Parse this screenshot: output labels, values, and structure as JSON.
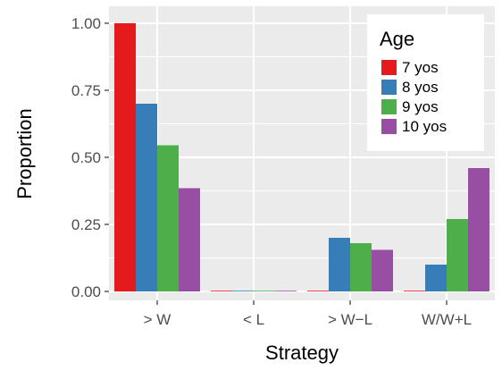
{
  "chart_data": {
    "type": "bar",
    "xlabel": "Strategy",
    "ylabel": "Proportion",
    "ylim": [
      0,
      1.0
    ],
    "yticks": [
      0.0,
      0.25,
      0.5,
      0.75,
      1.0
    ],
    "ytick_labels": [
      "0.00",
      "0.25",
      "0.50",
      "0.75",
      "1.00"
    ],
    "categories": [
      "> W",
      "< L",
      "> W−L",
      "W/W+L"
    ],
    "legend": {
      "title": "Age",
      "position": "top-right"
    },
    "grid": true,
    "series": [
      {
        "name": "7 yos",
        "color": "#e41a1c",
        "values": [
          1.0,
          0.0,
          0.0,
          0.0
        ]
      },
      {
        "name": "8 yos",
        "color": "#377eb8",
        "values": [
          0.7,
          0.0,
          0.2,
          0.1
        ]
      },
      {
        "name": "9 yos",
        "color": "#4daf4a",
        "values": [
          0.545,
          0.0,
          0.18,
          0.27
        ]
      },
      {
        "name": "10 yos",
        "color": "#984ea3",
        "values": [
          0.385,
          0.0,
          0.155,
          0.46
        ]
      }
    ]
  }
}
